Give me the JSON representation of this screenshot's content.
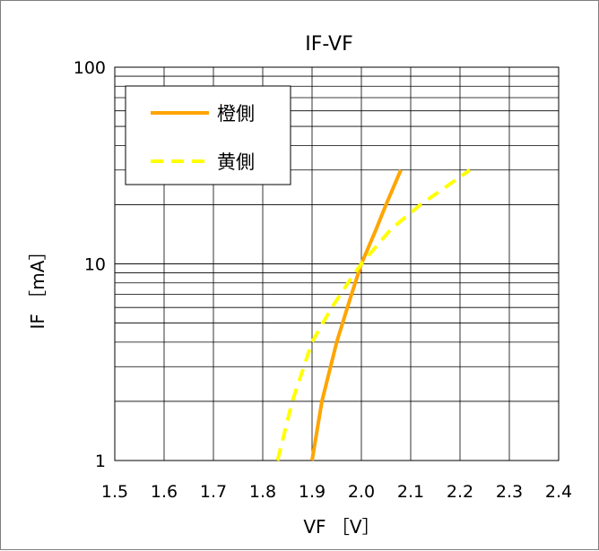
{
  "chart_data": {
    "type": "line",
    "title": "IF-VF",
    "xlabel": "VF ［V］",
    "ylabel": "IF ［mA］",
    "x_scale": "linear",
    "y_scale": "log",
    "xlim": [
      1.5,
      2.4
    ],
    "ylim": [
      1,
      100
    ],
    "x_ticks": [
      "1.5",
      "1.6",
      "1.7",
      "1.8",
      "1.9",
      "2.0",
      "2.1",
      "2.2",
      "2.3",
      "2.4"
    ],
    "y_ticks": [
      "1",
      "10",
      "100"
    ],
    "grid": true,
    "legend_position": "top-left",
    "series": [
      {
        "name": "橙側",
        "color": "#ffa500",
        "dash": "solid",
        "points": [
          [
            1.9,
            1
          ],
          [
            1.92,
            2
          ],
          [
            1.95,
            4
          ],
          [
            1.98,
            7
          ],
          [
            2.0,
            10
          ],
          [
            2.03,
            15
          ],
          [
            2.05,
            20
          ],
          [
            2.08,
            30
          ]
        ]
      },
      {
        "name": "黄側",
        "color": "#ffff00",
        "dash": "dashed",
        "points": [
          [
            1.83,
            1
          ],
          [
            1.86,
            2
          ],
          [
            1.9,
            4
          ],
          [
            1.94,
            6
          ],
          [
            1.98,
            8.5
          ],
          [
            2.0,
            10
          ],
          [
            2.06,
            15
          ],
          [
            2.12,
            20
          ],
          [
            2.22,
            30
          ]
        ]
      }
    ]
  }
}
